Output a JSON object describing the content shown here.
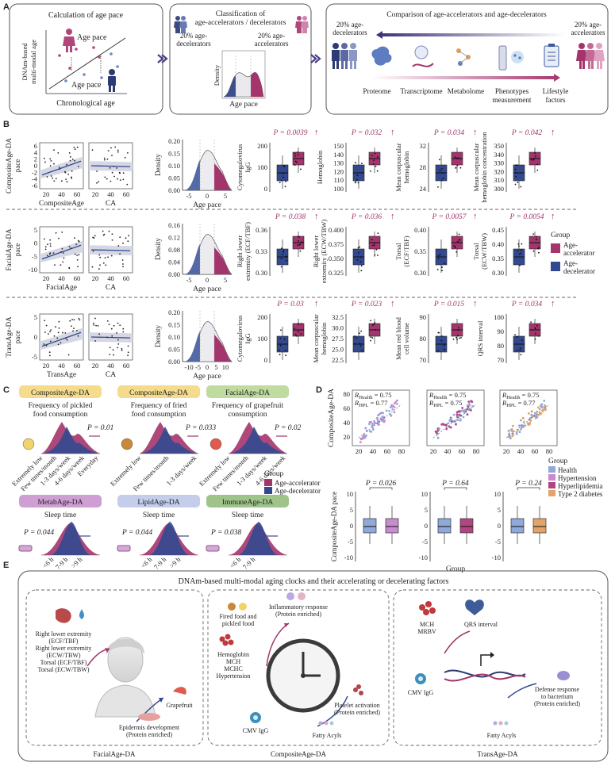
{
  "panel_letters": [
    "A",
    "B",
    "C",
    "D",
    "E"
  ],
  "panelA": {
    "box1_title": "Calculation of age pace",
    "box1_ylabel": "DNAm-based multi-modal age",
    "box1_xlabel": "Chronological age",
    "box1_label_top": "Age pace",
    "box1_label_bottom": "Age pace",
    "box2_title_line1": "Classification of",
    "box2_title_line2": "age-accelerators / decelerators",
    "box2_left_line1": "20% age-",
    "box2_left_line2": "decelerators",
    "box2_right_line1": "20% age-",
    "box2_right_line2": "accelerators",
    "box2_density": "Density",
    "box2_xlabel": "Age pace",
    "box3_title": "Comparison of age-accelerators and age-decelerators",
    "box3_left_line1": "20% age-",
    "box3_left_line2": "decelerators",
    "box3_right_line1": "20% age-",
    "box3_right_line2": "accelerators",
    "omics": [
      "Proteome",
      "Transcriptome",
      "Metabolome",
      "Phenotypes measurement",
      "Lifestyle factors"
    ]
  },
  "panelB": {
    "rows": [
      {
        "scatter_ylabel": "CompositeAge-DA pace",
        "scatter_xlabel": "CompositeAge",
        "ca_xlabel": "CA",
        "yticks": [
          "6",
          "4",
          "2",
          "0",
          "-2",
          "-4",
          "-6"
        ],
        "xticks": [
          "20",
          "40",
          "60"
        ],
        "density_yticks": [
          "0.20",
          "0.15",
          "0.10",
          "0.05",
          "0.00"
        ],
        "density_xticks": [
          "-5",
          "0",
          "5"
        ],
        "density_ylabel": "Density",
        "density_xlabel": "Age pace",
        "boxplots": [
          {
            "ylabel": "Cytomegalovirus IgG",
            "p": "P = 0.0039",
            "yticks": [
              "200",
              "100",
              "0"
            ]
          },
          {
            "ylabel": "Hemoglobin",
            "p": "P = 0.032",
            "yticks": [
              "150",
              "140",
              "130",
              "120",
              "110",
              "100"
            ]
          },
          {
            "ylabel": "Mean corpuscular hemoglobin",
            "p": "P = 0.034",
            "yticks": [
              "32",
              "28",
              "24"
            ]
          },
          {
            "ylabel": "Mean corpuscular hemoglobin concentration",
            "p": "P = 0.042",
            "yticks": [
              "350",
              "340",
              "330",
              "320",
              "310",
              "300"
            ]
          }
        ]
      },
      {
        "scatter_ylabel": "FacialAge-DA pace",
        "scatter_xlabel": "FacialAge",
        "ca_xlabel": "CA",
        "yticks": [
          "5",
          "0",
          "-5",
          "-10"
        ],
        "xticks": [
          "20",
          "40",
          "60"
        ],
        "density_yticks": [
          "0.16",
          "0.12",
          "0.08",
          "0.04",
          "0.00"
        ],
        "density_xticks": [
          "-5",
          "0",
          "5"
        ],
        "density_ylabel": "Density",
        "density_xlabel": "Age pace",
        "boxplots": [
          {
            "ylabel": "Right lower extremity (ECF/TBF)",
            "p": "P = 0.038",
            "yticks": [
              "0.36",
              "0.33",
              "0.30"
            ]
          },
          {
            "ylabel": "Right lower extremity (ECW/TBW)",
            "p": "P = 0.036",
            "yticks": [
              "0.400",
              "0.375",
              "0.350",
              "0.325"
            ]
          },
          {
            "ylabel": "Torsal (ECF/TBF)",
            "p": "P = 0.0057",
            "yticks": [
              "0.40",
              "0.35",
              "0.30"
            ]
          },
          {
            "ylabel": "Torsal (ECW/TBW)",
            "p": "P = 0.0054",
            "yticks": [
              "0.45",
              "0.40",
              "0.35",
              "0.30"
            ]
          }
        ]
      },
      {
        "scatter_ylabel": "TransAge-DA pace",
        "scatter_xlabel": "TransAge",
        "ca_xlabel": "CA",
        "yticks": [
          "5",
          "0",
          "-5"
        ],
        "xticks": [
          "20",
          "40",
          "60"
        ],
        "density_yticks": [
          "0.20",
          "0.15",
          "0.10",
          "0.05",
          "0.00"
        ],
        "density_xticks": [
          "-10",
          "-5",
          "0",
          "5",
          "10"
        ],
        "density_ylabel": "Density",
        "density_xlabel": "Age pace",
        "boxplots": [
          {
            "ylabel": "Cytomegalovirus IgG",
            "p": "P = 0.03",
            "yticks": [
              "200",
              "100",
              "0"
            ]
          },
          {
            "ylabel": "Mean corpuscular hemoglobin",
            "p": "P = 0.023",
            "yticks": [
              "32.5",
              "30.0",
              "27.5",
              "25.0",
              "22.5"
            ]
          },
          {
            "ylabel": "Mean red blood cell volume",
            "p": "P = 0.015",
            "yticks": [
              "90",
              "80",
              "70"
            ]
          },
          {
            "ylabel": "QRS interval",
            "p": "P = 0.034",
            "yticks": [
              "100",
              "90",
              "80",
              "70"
            ]
          }
        ]
      }
    ],
    "legend_title": "Group",
    "legend_items": [
      "Age-accelerator",
      "Age-decelerator"
    ],
    "colors": {
      "accelerator": "#a4356c",
      "decelerator": "#33498f"
    }
  },
  "panelC": {
    "panels": [
      {
        "tag": "CompositeAge-DA",
        "tag_color": "#f5dc8c",
        "title_l1": "Frequency of pickled",
        "title_l2": "food consumption",
        "p": "P = 0.01"
      },
      {
        "tag": "CompositeAge-DA",
        "tag_color": "#f5dc8c",
        "title_l1": "Frequency of fried",
        "title_l2": "food consumption",
        "p": "P = 0.033"
      },
      {
        "tag": "FacialAge-DA",
        "tag_color": "#bfdc9e",
        "title_l1": "Frequency of grapefruit",
        "title_l2": "consumption",
        "p": "P = 0.02"
      },
      {
        "tag": "MetabAge-DA",
        "tag_color": "#cf9fd3",
        "title_l1": "Sleep time",
        "title_l2": "",
        "p": "P = 0.044"
      },
      {
        "tag": "LipidAge-DA",
        "tag_color": "#c4cdea",
        "title_l1": "Sleep time",
        "title_l2": "",
        "p": "P = 0.044"
      },
      {
        "tag": "ImmuneAge-DA",
        "tag_color": "#9ec48a",
        "title_l1": "Sleep time",
        "title_l2": "",
        "p": "P = 0.038"
      }
    ],
    "freq_ticks_1": [
      "Extremely low",
      "Few times/month",
      "1-3 days/week",
      "4-6 days/week",
      "Everyday"
    ],
    "freq_ticks_2": [
      "Extremely low",
      "Few times/month",
      "1-3 days/week"
    ],
    "freq_ticks_3": [
      "Extremely low",
      "Few times/month",
      "1-3 days/week",
      "4-6 days/week"
    ],
    "sleep_ticks_3": [
      "<6 h",
      "7-9 h",
      ">9 h"
    ],
    "sleep_ticks_2": [
      "<6 h",
      "7-9 h"
    ],
    "legend_title": "Group",
    "legend_items": [
      "Age-accelerator",
      "Age-decelerator"
    ]
  },
  "panelD": {
    "ylabel_top": "CompositeAge-DA",
    "stats": [
      {
        "r1": "= 0.75",
        "r2": "= 0.77"
      },
      {
        "r1": "= 0.75",
        "r2": "= 0.75"
      },
      {
        "r1": "= 0.75",
        "r2": "= 0.77"
      }
    ],
    "r_sub1": "Health",
    "r_sub2": "HPL",
    "top_yticks": [
      "80",
      "60",
      "40",
      "20"
    ],
    "top_xticks": [
      "20",
      "40",
      "60",
      "80"
    ],
    "bottom_ylabel": "CompositeAge-DA pace",
    "bottom_yticks": [
      "10",
      "5",
      "0",
      "-5",
      "-10"
    ],
    "bottom_xlabel": "Group",
    "p_values": [
      "P = 0.026",
      "P = 0.64",
      "P = 0.24"
    ],
    "legend_title": "Group",
    "legend_items": [
      {
        "label": "Health",
        "color": "#8fa9d8"
      },
      {
        "label": "Hypertension",
        "color": "#c98bd0"
      },
      {
        "label": "Hyperlipidemia",
        "color": "#b04681"
      },
      {
        "label": "Type 2 diabetes",
        "color": "#e3a46a"
      }
    ]
  },
  "panelE": {
    "title": "DNAm-based multi-modal aging clocks and their accelerating or decelerating factors",
    "facial_labels": [
      "Right lower extremity",
      "(ECF/TBF)",
      "Right lower extremity",
      "(ECW/TBW)",
      "Torsal (ECF/TBF)",
      "Torsal (ECW/TBW)"
    ],
    "facial_grapefruit": "Grapefruit",
    "facial_epidermis_l1": "Epidermis development",
    "facial_epidermis_l2": "(Protein enriched)",
    "facial_footer": "FacialAge-DA",
    "comp_fried_l1": "Fired food and",
    "comp_fried_l2": "pickled food",
    "comp_inflam_l1": "Inflammatory response",
    "comp_inflam_l2": "(Protein enriched)",
    "comp_hemo": [
      "Hemoglobin",
      "MCH",
      "MCHC",
      "Hypertension"
    ],
    "comp_cmv": "CMV IgG",
    "comp_platelet_l1": "Platelet activation",
    "comp_platelet_l2": "(Protein enriched)",
    "comp_fatty": "Fatty Acyls",
    "comp_footer": "CompositeAge-DA",
    "trans_qrs": "QRS interval",
    "trans_mch": [
      "MCH",
      "MRBV"
    ],
    "trans_cmv": "CMV IgG",
    "trans_defense_l1": "Defense response",
    "trans_defense_l2": "to bacterium",
    "trans_defense_l3": "(Protein enriched)",
    "trans_fatty": "Fatty Acyls",
    "trans_footer": "TransAge-DA"
  }
}
